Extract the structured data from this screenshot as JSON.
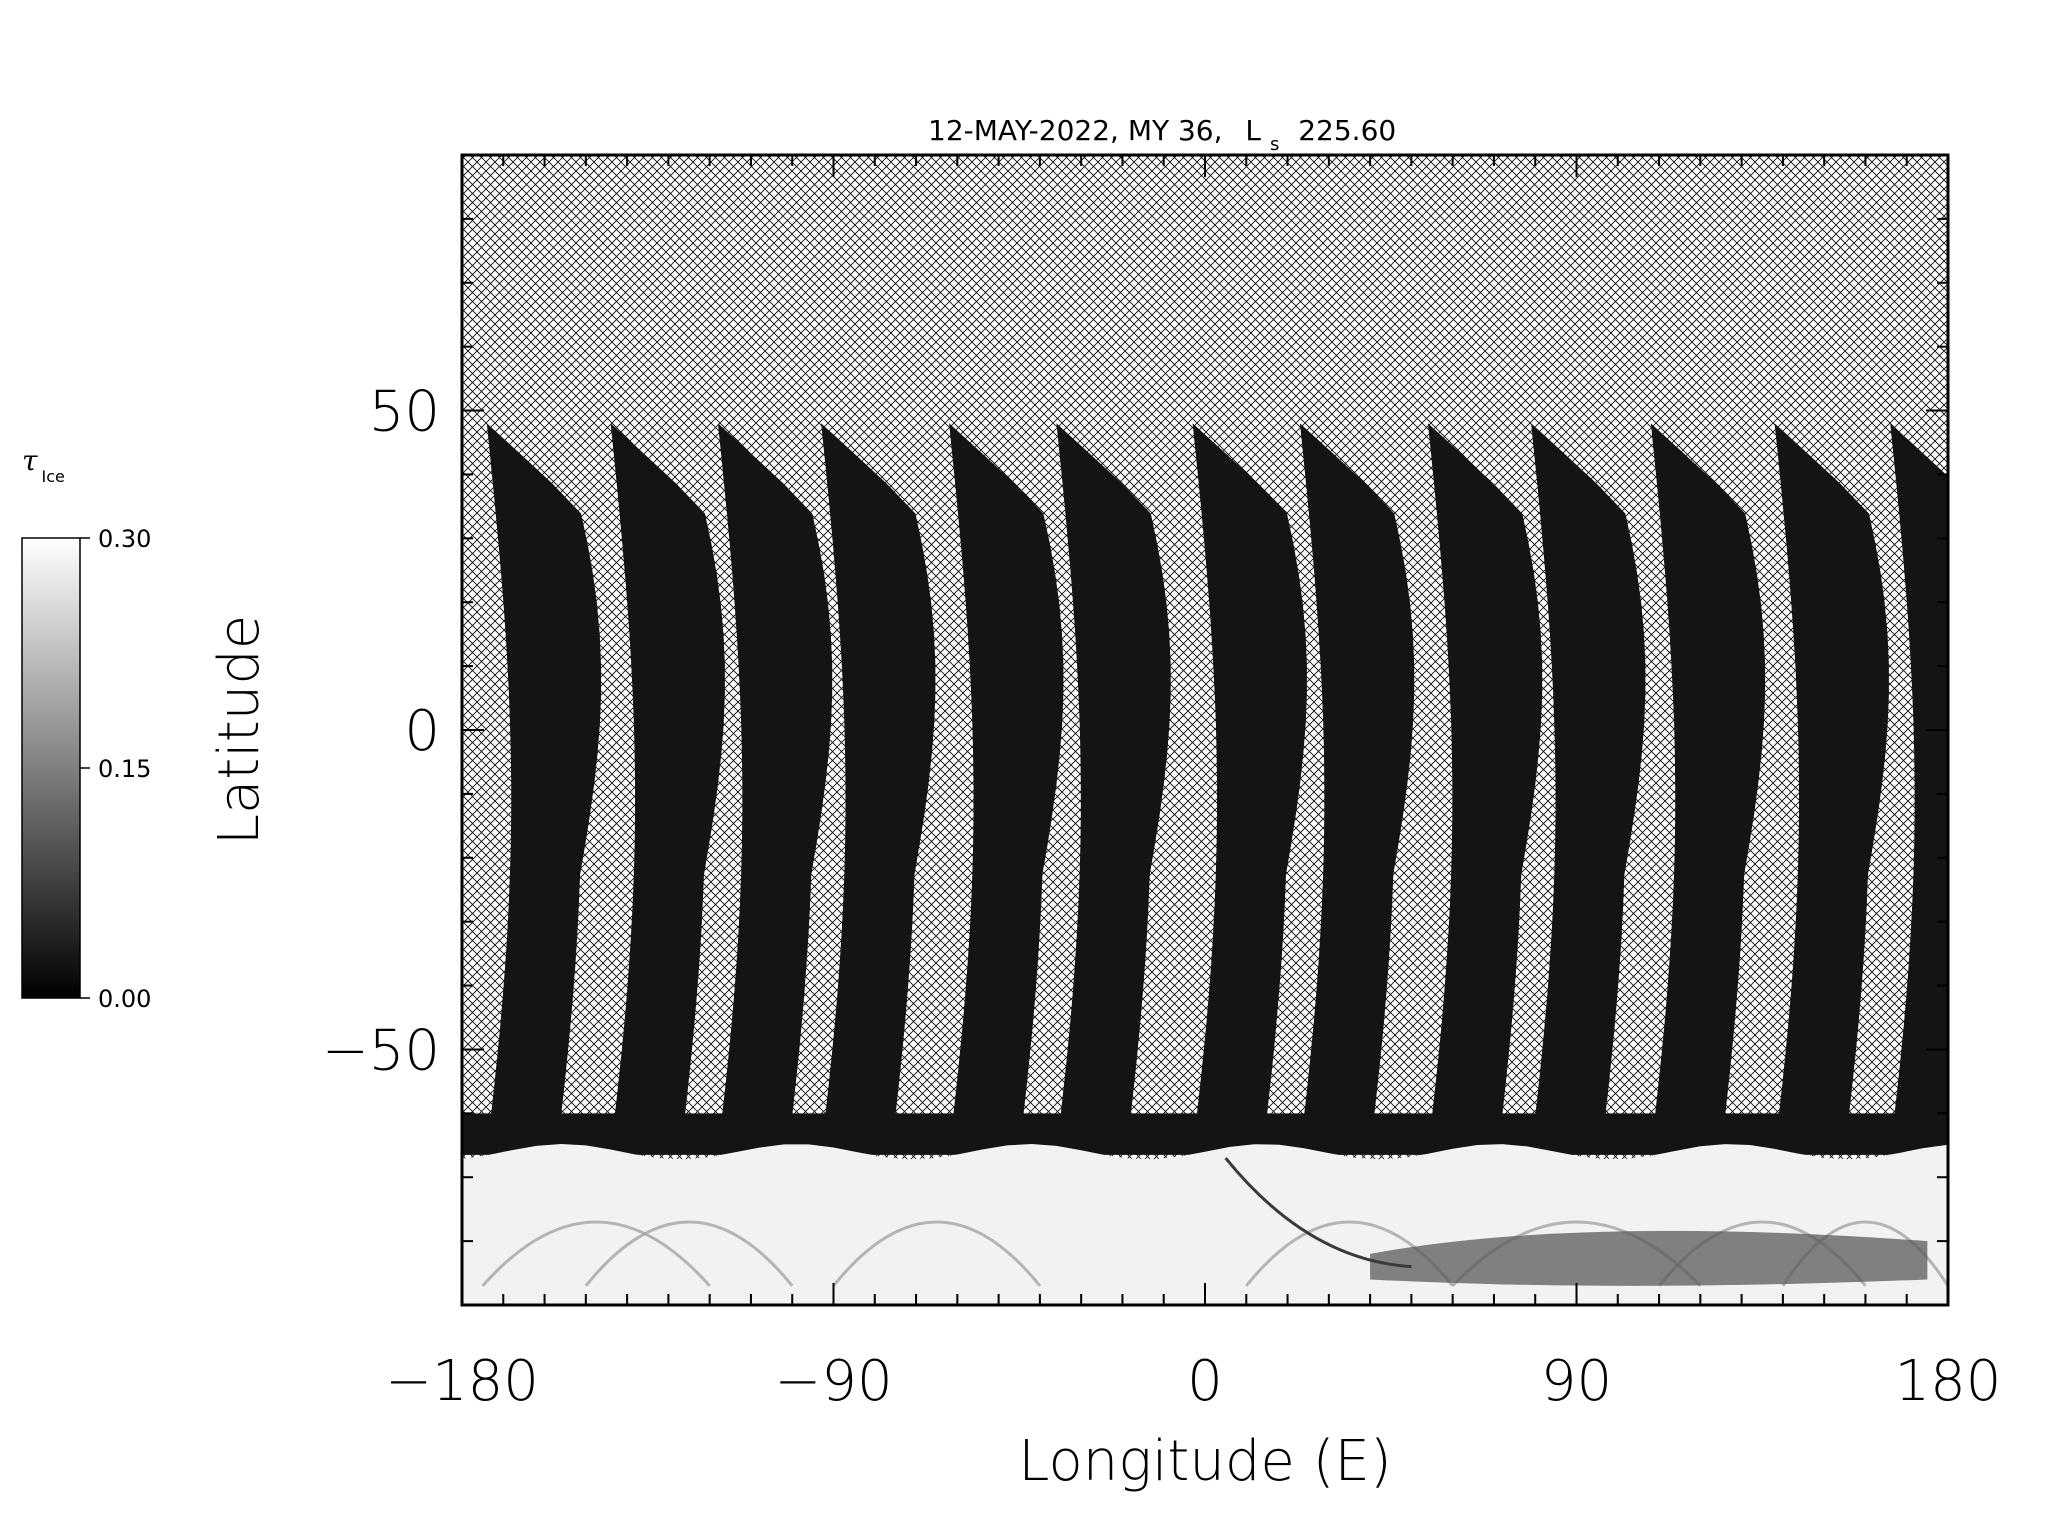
{
  "chart_data": {
    "type": "heatmap",
    "title": "12-MAY-2022, MY 36,",
    "title_ls_symbol": "L",
    "title_ls_subscript": "s",
    "title_ls_value": "225.60",
    "xlabel": "Longitude (E)",
    "ylabel": "Latitude",
    "xlim": [
      -180,
      180
    ],
    "ylim": [
      -90,
      90
    ],
    "x_ticks": [
      -180,
      -90,
      0,
      90,
      180
    ],
    "x_tick_labels": [
      "−180",
      "−90",
      "0",
      "90",
      "180"
    ],
    "y_ticks": [
      -50,
      0,
      50
    ],
    "y_tick_labels": [
      "−50",
      "0",
      "50"
    ],
    "colorbar": {
      "label_symbol": "τ",
      "label_subscript": "Ice",
      "range": [
        0.0,
        0.3
      ],
      "ticks": [
        0.0,
        0.15,
        0.3
      ],
      "tick_labels": [
        "0.00",
        "0.15",
        "0.30"
      ],
      "colormap": "grayscale"
    },
    "orbit_swaths": {
      "count": 13,
      "start_longitudes": [
        -174,
        -144,
        -118,
        -93,
        -62,
        -36,
        -3,
        23,
        54,
        79,
        108,
        138,
        166
      ],
      "northern_limit_lat": 48,
      "southern_limit_lat": -65,
      "typical_value": 0.01
    },
    "south_polar_region": {
      "lat_range": [
        -90,
        -66
      ],
      "typical_value": 0.28
    },
    "no_data_pattern": "crosshatch",
    "colors": {
      "swath": "#141414",
      "polar": "#f2f2f2",
      "hatch": "#000000",
      "background": "#ffffff"
    }
  }
}
